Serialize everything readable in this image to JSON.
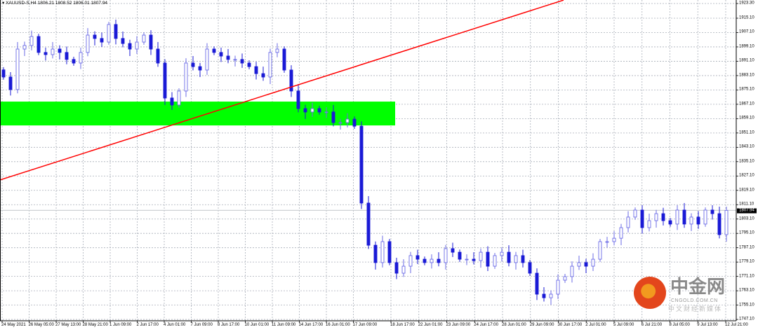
{
  "header": {
    "symbol": "XAUUSD-S,H4",
    "open": "1806.21",
    "high": "1808.52",
    "low": "1806.01",
    "close": "1807.94"
  },
  "current_price_label": "1807.94",
  "colors": {
    "bull_candle": "#6b6be6",
    "bear_candle": "#1a1ad6",
    "zone": "#00ff00",
    "trendline": "#ff0000",
    "grid": "#a8aeb8",
    "price_line": "#c8ccd0"
  },
  "watermark": {
    "logo_text": "中金网",
    "domain": "CNGOLD.COM.CN",
    "tagline": "中文财经新媒体"
  },
  "chart_data": {
    "type": "candlestick",
    "title": "XAUUSD-S,H4",
    "ylim": [
      1747.1,
      1923.3
    ],
    "y_ticks": [
      "1923.30",
      "1915.10",
      "1907.10",
      "1899.10",
      "1891.10",
      "1883.10",
      "1875.10",
      "1867.10",
      "1859.10",
      "1851.10",
      "1843.10",
      "1835.10",
      "1827.10",
      "1819.10",
      "1811.10",
      "1803.10",
      "1795.10",
      "1787.10",
      "1779.10",
      "1771.10",
      "1763.10",
      "1755.10",
      "1747.10"
    ],
    "x_ticks": [
      "24 May 2021",
      "26 May 05:00",
      "27 May 13:00",
      "28 May 21:00",
      "1 Jun 09:00",
      "2 Jun 17:00",
      "4 Jun 01:00",
      "7 Jun 09:00",
      "8 Jun 17:00",
      "10 Jun 01:00",
      "11 Jun 09:00",
      "14 Jun 17:00",
      "16 Jun 01:00",
      "17 Jun 09:00",
      "18 Jun 17:00",
      "22 Jun 01:00",
      "23 Jun 09:00",
      "24 Jun 17:00",
      "28 Jun 01:00",
      "29 Jun 09:00",
      "30 Jun 17:00",
      "2 Jul 01:00",
      "5 Jul 09:00",
      "6 Jul 21:00",
      "8 Jul 05:00",
      "9 Jul 13:00",
      "12 Jul 21:00"
    ],
    "grid": true,
    "close": [
      1882.3,
      1875.3,
      1897.9,
      1899.9,
      1904.9,
      1896.0,
      1894.8,
      1897.9,
      1896.0,
      1892.1,
      1890.1,
      1896.0,
      1905.7,
      1903.8,
      1901.8,
      1911.6,
      1903.8,
      1901.0,
      1897.9,
      1901.8,
      1905.7,
      1897.9,
      1890.1,
      1870.6,
      1866.7,
      1874.5,
      1890.1,
      1888.1,
      1886.2,
      1897.9,
      1896.0,
      1894.0,
      1892.1,
      1892.1,
      1890.1,
      1888.1,
      1884.2,
      1882.3,
      1896.0,
      1897.9,
      1886.2,
      1874.5,
      1864.7,
      1862.8,
      1864.7,
      1862.8,
      1862.8,
      1856.9,
      1856.9,
      1858.8,
      1854.9,
      1812.0,
      1788.5,
      1778.8,
      1790.5,
      1778.8,
      1772.9,
      1776.8,
      1782.7,
      1780.7,
      1778.8,
      1780.7,
      1778.8,
      1786.6,
      1784.6,
      1780.7,
      1780.7,
      1779.9,
      1784.6,
      1776.8,
      1782.7,
      1784.6,
      1778.8,
      1782.7,
      1778.8,
      1772.9,
      1761.2,
      1759.2,
      1761.2,
      1769.0,
      1771.0,
      1776.8,
      1778.8,
      1776.8,
      1780.7,
      1790.5,
      1790.5,
      1792.4,
      1798.3,
      1804.2,
      1808.1,
      1798.3,
      1802.2,
      1806.1,
      1802.2,
      1800.3,
      1808.1,
      1800.3,
      1804.2,
      1800.3,
      1808.1,
      1806.1,
      1794.4,
      1807.94
    ],
    "current_price": 1807.94,
    "zone": {
      "from": "24 May 2021",
      "to": "18 Jun 17:00",
      "price_low": 1855.3,
      "price_high": 1868.6
    },
    "trendline": {
      "start": {
        "x": "24 May 2021",
        "price": 1824.9
      },
      "end": {
        "x": "30 Jun 17:00",
        "price": 1925.2
      }
    }
  }
}
